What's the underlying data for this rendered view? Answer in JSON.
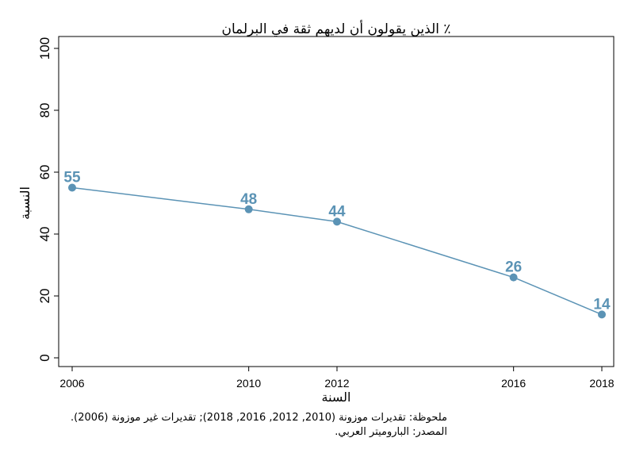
{
  "chart_data": {
    "type": "line",
    "title": "٪ الذين يقولون أن لديهم ثقة في البرلمان",
    "xlabel": "السنة",
    "ylabel": "النسبة",
    "x": [
      2006,
      2010,
      2012,
      2016,
      2018
    ],
    "values": [
      55,
      48,
      44,
      26,
      14
    ],
    "data_labels": [
      "55",
      "48",
      "44",
      "26",
      "14"
    ],
    "xticks": [
      "2006",
      "2010",
      "2012",
      "2016",
      "2018"
    ],
    "yticks": [
      "0",
      "20",
      "40",
      "60",
      "80",
      "100"
    ],
    "ylim": [
      0,
      100
    ],
    "grid": false,
    "line_color": "#5b93b5"
  },
  "notes": {
    "note_line": "ملحوظة: تقديرات موزونة (2010, 2012, 2016, 2018); تقديرات غير موزونة (2006).",
    "source_line": "المصدر: الباروميتر العربي."
  }
}
